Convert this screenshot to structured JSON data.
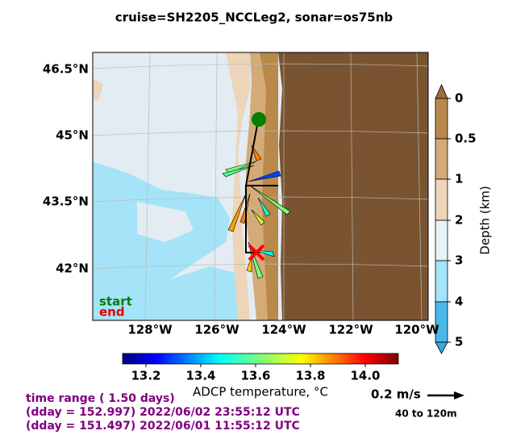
{
  "header": {
    "title": "cruise=SH2205_NCCLeg2,   sonar=os75nb"
  },
  "map": {
    "lat_labels": [
      "46.5°N",
      "45°N",
      "43.5°N",
      "42°N"
    ],
    "lon_labels": [
      "128°W",
      "126°W",
      "124°W",
      "122°W",
      "120°W"
    ],
    "start_label": "start",
    "end_label": "end"
  },
  "depth_colorbar": {
    "label": "Depth (km)",
    "tick_labels": [
      "0",
      "0.5",
      "1",
      "2",
      "3",
      "4",
      "5"
    ]
  },
  "temperature_colorbar": {
    "label": "ADCP temperature, °C",
    "tick_labels": [
      "13.2",
      "13.4",
      "13.6",
      "13.8",
      "14.0"
    ]
  },
  "scale": {
    "speed": "0.2 m/s",
    "depth_range": "40 to 120m"
  },
  "time_info": [
    "time range ( 1.50 days)",
    "(dday = 152.997) 2022/06/02 23:55:12 UTC",
    "(dday = 151.497) 2022/06/01 11:55:12 UTC"
  ]
}
